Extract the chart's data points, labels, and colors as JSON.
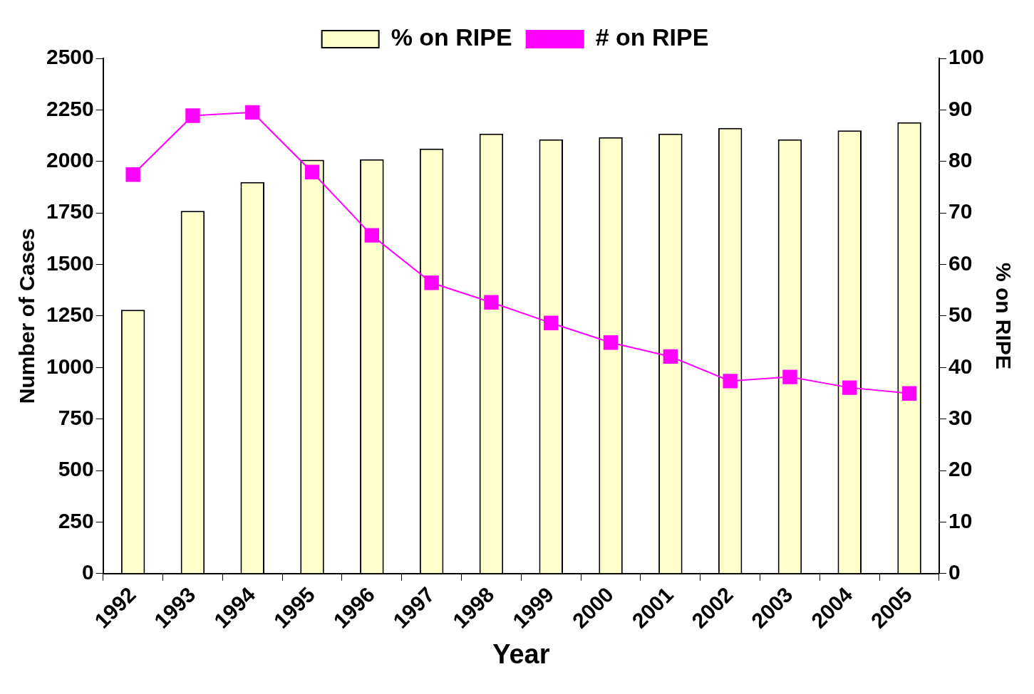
{
  "chart_data": {
    "type": "bar",
    "xlabel": "Year",
    "ylabel": "Number of Cases",
    "y2label": "% on RIPE",
    "categories": [
      "1992",
      "1993",
      "1994",
      "1995",
      "1996",
      "1997",
      "1998",
      "1999",
      "2000",
      "2001",
      "2002",
      "2003",
      "2004",
      "2005"
    ],
    "series": [
      {
        "name": "% on RIPE",
        "axis": "y2",
        "color": "#ffffcc",
        "values": [
          51.2,
          70.4,
          76,
          80.3,
          80.4,
          82.5,
          85.4,
          84.3,
          84.7,
          85.4,
          86.5,
          84.3,
          86,
          87.6
        ]
      },
      {
        "name": "# on RIPE",
        "type": "line",
        "color": "#ff00ff",
        "marker": "square",
        "values": [
          1936,
          2222,
          2238,
          1948,
          1641,
          1411,
          1316,
          1216,
          1121,
          1053,
          934,
          954,
          902,
          874
        ]
      }
    ],
    "ylim": [
      0,
      2500
    ],
    "yticks": [
      0,
      250,
      500,
      750,
      1000,
      1250,
      1500,
      1750,
      2000,
      2250,
      2500
    ],
    "y2lim": [
      0,
      100
    ],
    "y2ticks": [
      0,
      10,
      20,
      30,
      40,
      50,
      60,
      70,
      80,
      90,
      100
    ],
    "legend": "top"
  }
}
